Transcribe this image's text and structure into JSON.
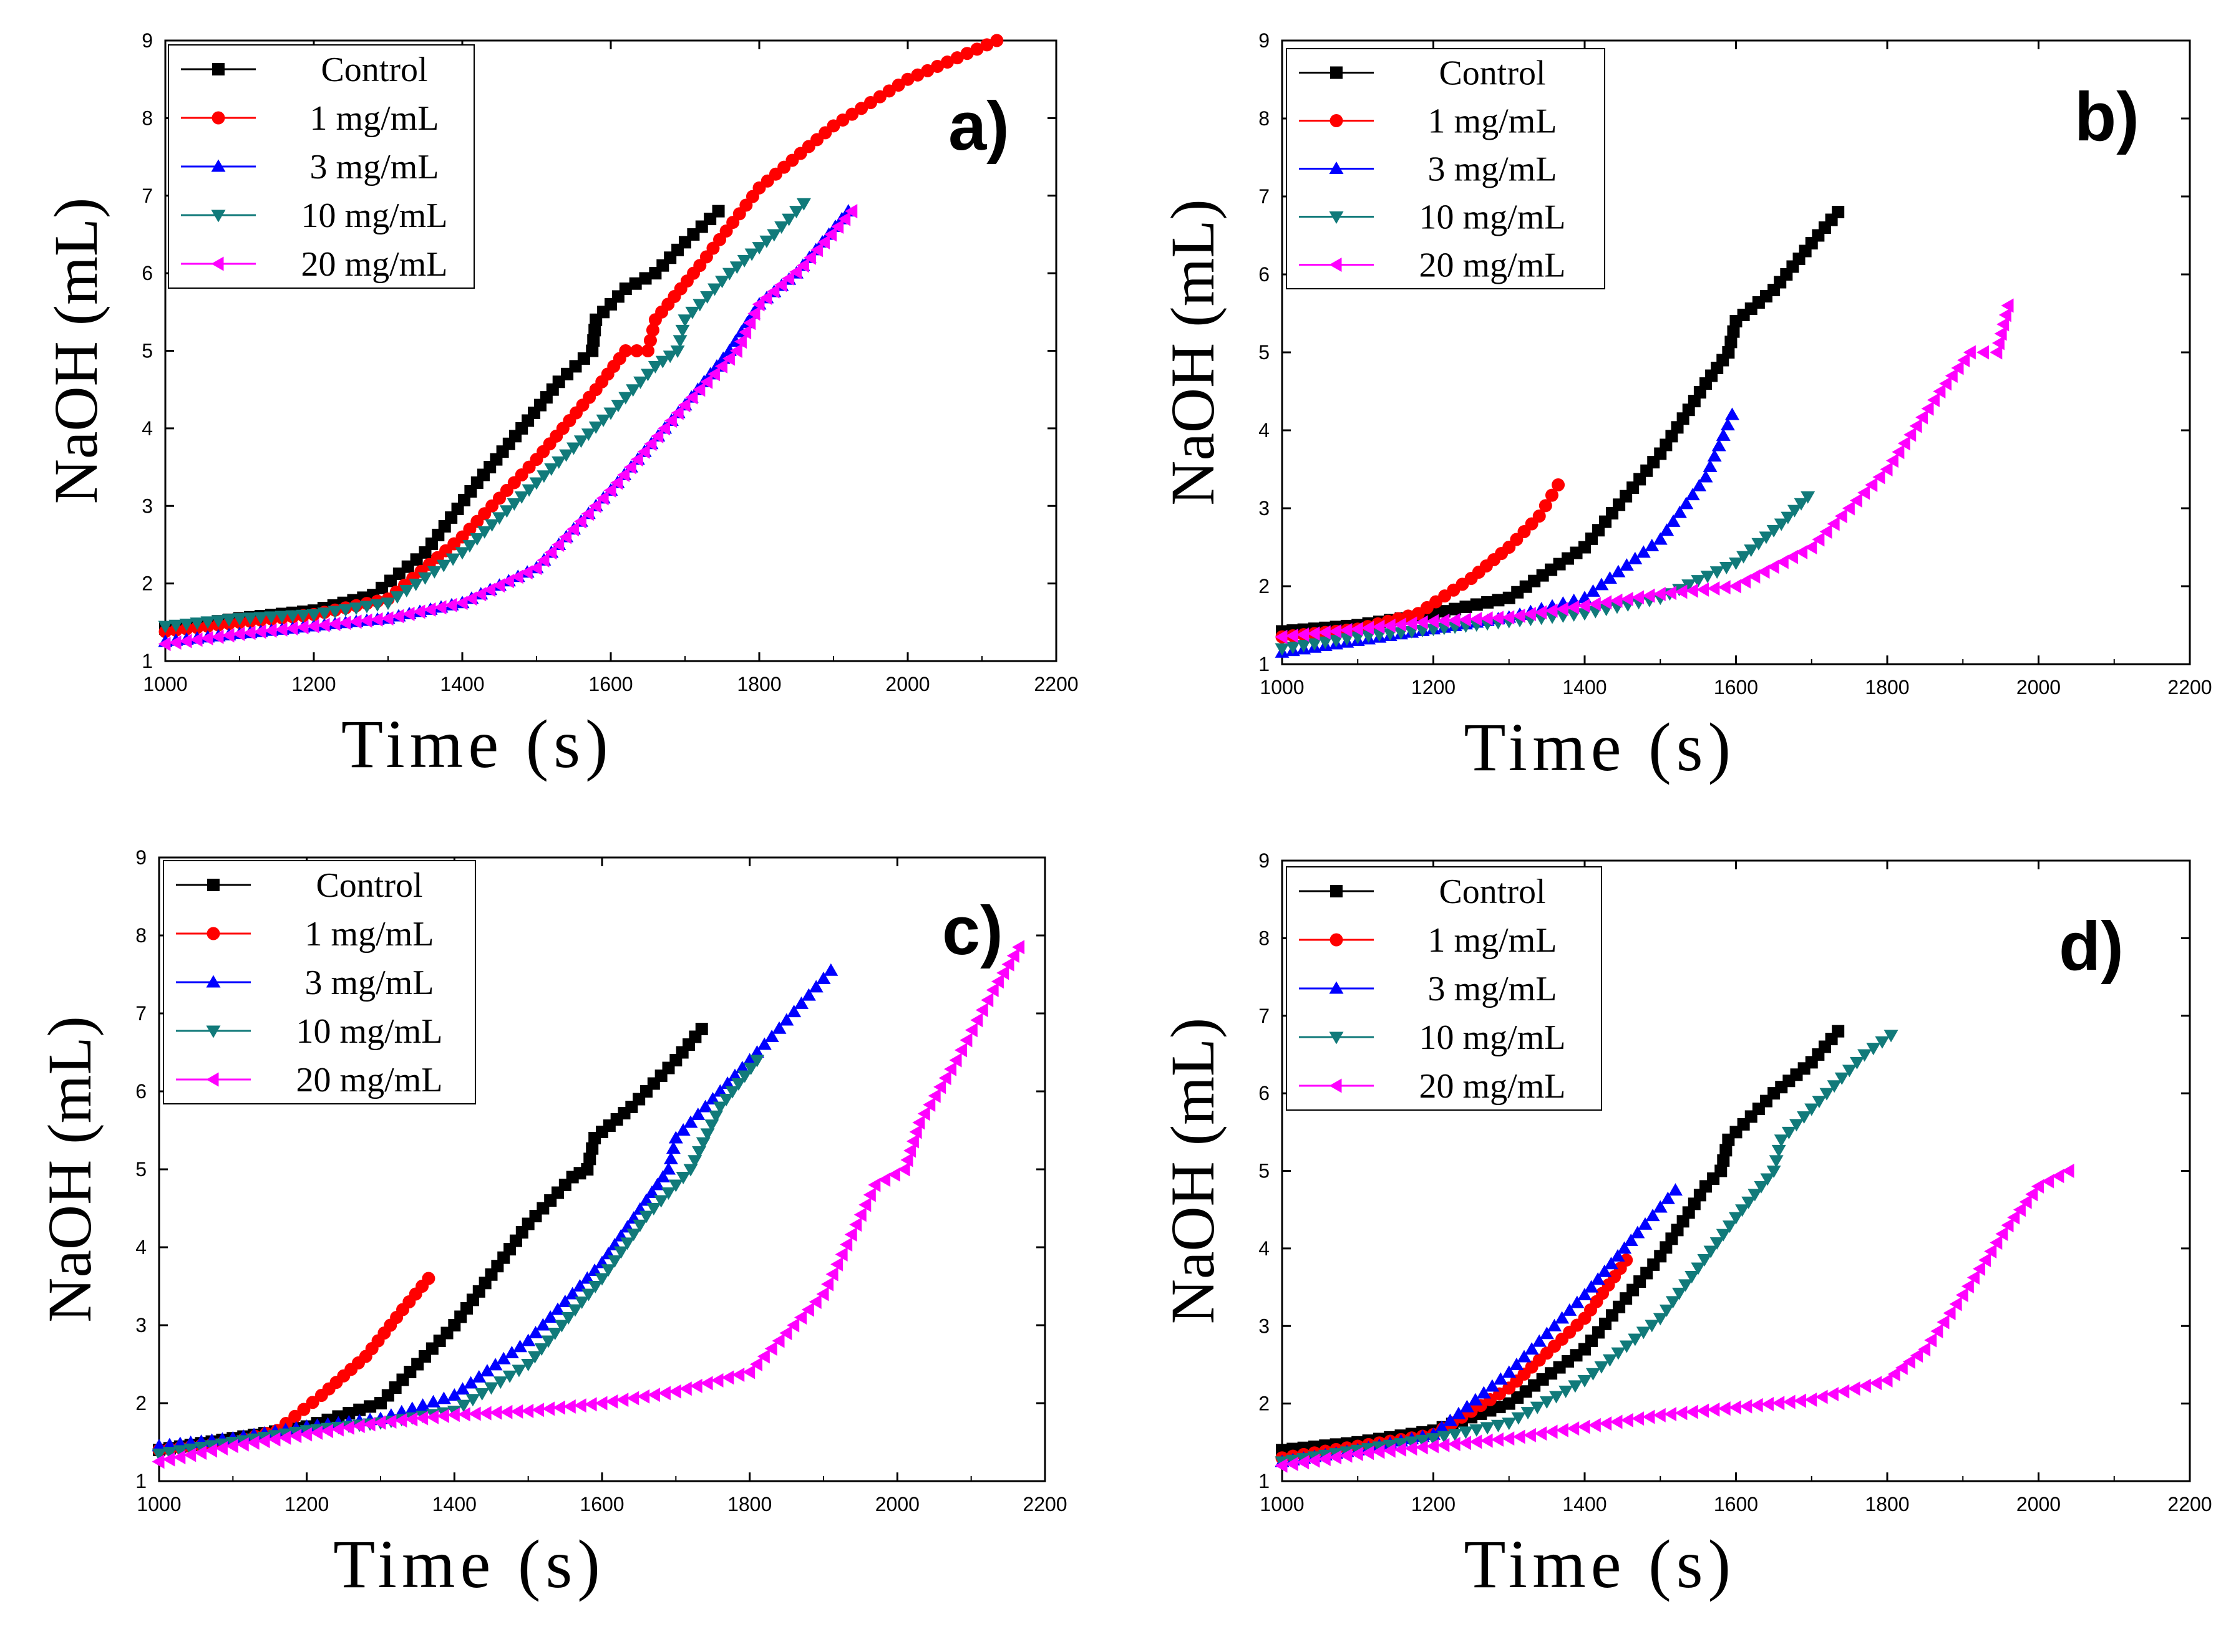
{
  "colors": {
    "Control": "#000000",
    "1 mg/mL": "#ff0000",
    "3 mg/mL": "#0000ff",
    "10 mg/mL": "#117a7a",
    "20 mg/mL": "#ff00ff"
  },
  "chart_data": [
    {
      "type": "scatter",
      "panel_label": "a)",
      "xlabel": "Time (s)",
      "ylabel": "NaOH (mL)",
      "xlim": [
        1000,
        2200
      ],
      "ylim": [
        1,
        9
      ],
      "xticks": [
        "1000",
        "1200",
        "1400",
        "1600",
        "1800",
        "2000",
        "2200"
      ],
      "yticks": [
        "1",
        "2",
        "3",
        "4",
        "5",
        "6",
        "7",
        "8",
        "9"
      ],
      "legend_position": "top-left",
      "series": [
        {
          "name": "Control",
          "marker": "square",
          "points": [
            [
              1000,
              1.42
            ],
            [
              1100,
              1.55
            ],
            [
              1200,
              1.65
            ],
            [
              1280,
              1.85
            ],
            [
              1350,
              2.4
            ],
            [
              1420,
              3.3
            ],
            [
              1480,
              4.0
            ],
            [
              1530,
              4.6
            ],
            [
              1575,
              5.0
            ],
            [
              1580,
              5.4
            ],
            [
              1620,
              5.8
            ],
            [
              1660,
              6.0
            ],
            [
              1700,
              6.4
            ],
            [
              1745,
              6.8
            ]
          ]
        },
        {
          "name": "1 mg/mL",
          "marker": "circle",
          "points": [
            [
              1000,
              1.38
            ],
            [
              1100,
              1.5
            ],
            [
              1200,
              1.6
            ],
            [
              1300,
              1.8
            ],
            [
              1400,
              2.6
            ],
            [
              1500,
              3.6
            ],
            [
              1580,
              4.5
            ],
            [
              1620,
              5.0
            ],
            [
              1650,
              5.0
            ],
            [
              1660,
              5.4
            ],
            [
              1720,
              6.1
            ],
            [
              1800,
              7.1
            ],
            [
              1900,
              7.9
            ],
            [
              2000,
              8.5
            ],
            [
              2120,
              9.0
            ]
          ]
        },
        {
          "name": "3 mg/mL",
          "marker": "triangle-up",
          "points": [
            [
              1000,
              1.25
            ],
            [
              1100,
              1.35
            ],
            [
              1200,
              1.45
            ],
            [
              1300,
              1.55
            ],
            [
              1400,
              1.75
            ],
            [
              1500,
              2.2
            ],
            [
              1600,
              3.2
            ],
            [
              1700,
              4.3
            ],
            [
              1760,
              5.0
            ],
            [
              1800,
              5.6
            ],
            [
              1850,
              6.0
            ],
            [
              1920,
              6.8
            ]
          ]
        },
        {
          "name": "10 mg/mL",
          "marker": "triangle-down",
          "points": [
            [
              1000,
              1.45
            ],
            [
              1100,
              1.55
            ],
            [
              1200,
              1.6
            ],
            [
              1300,
              1.75
            ],
            [
              1400,
              2.4
            ],
            [
              1500,
              3.3
            ],
            [
              1600,
              4.2
            ],
            [
              1660,
              4.8
            ],
            [
              1690,
              5.0
            ],
            [
              1700,
              5.4
            ],
            [
              1760,
              6.0
            ],
            [
              1820,
              6.5
            ],
            [
              1860,
              6.9
            ]
          ]
        },
        {
          "name": "20 mg/mL",
          "marker": "triangle-left",
          "points": [
            [
              1000,
              1.22
            ],
            [
              1100,
              1.35
            ],
            [
              1200,
              1.45
            ],
            [
              1300,
              1.55
            ],
            [
              1400,
              1.75
            ],
            [
              1500,
              2.2
            ],
            [
              1600,
              3.2
            ],
            [
              1700,
              4.3
            ],
            [
              1770,
              5.0
            ],
            [
              1800,
              5.6
            ],
            [
              1860,
              6.1
            ],
            [
              1925,
              6.8
            ]
          ]
        }
      ]
    },
    {
      "type": "scatter",
      "panel_label": "b)",
      "xlabel": "Time (s)",
      "ylabel": "NaOH (mL)",
      "xlim": [
        1000,
        2200
      ],
      "ylim": [
        1,
        9
      ],
      "xticks": [
        "1000",
        "1200",
        "1400",
        "1600",
        "1800",
        "2000",
        "2200"
      ],
      "yticks": [
        "1",
        "2",
        "3",
        "4",
        "5",
        "6",
        "7",
        "8",
        "9"
      ],
      "legend_position": "top-left",
      "series": [
        {
          "name": "Control",
          "marker": "square",
          "points": [
            [
              1000,
              1.42
            ],
            [
              1100,
              1.5
            ],
            [
              1200,
              1.65
            ],
            [
              1300,
              1.85
            ],
            [
              1400,
              2.5
            ],
            [
              1500,
              3.7
            ],
            [
              1560,
              4.6
            ],
            [
              1590,
              5.0
            ],
            [
              1600,
              5.4
            ],
            [
              1650,
              5.8
            ],
            [
              1700,
              6.4
            ],
            [
              1735,
              6.8
            ]
          ]
        },
        {
          "name": "1 mg/mL",
          "marker": "circle",
          "points": [
            [
              1000,
              1.35
            ],
            [
              1100,
              1.45
            ],
            [
              1180,
              1.65
            ],
            [
              1250,
              2.1
            ],
            [
              1300,
              2.5
            ],
            [
              1340,
              2.9
            ],
            [
              1365,
              3.3
            ]
          ]
        },
        {
          "name": "3 mg/mL",
          "marker": "triangle-up",
          "points": [
            [
              1000,
              1.15
            ],
            [
              1100,
              1.3
            ],
            [
              1200,
              1.45
            ],
            [
              1300,
              1.6
            ],
            [
              1400,
              1.85
            ],
            [
              1500,
              2.6
            ],
            [
              1560,
              3.4
            ],
            [
              1595,
              4.2
            ]
          ]
        },
        {
          "name": "10 mg/mL",
          "marker": "triangle-down",
          "points": [
            [
              1000,
              1.2
            ],
            [
              1100,
              1.35
            ],
            [
              1200,
              1.45
            ],
            [
              1300,
              1.55
            ],
            [
              1400,
              1.65
            ],
            [
              1500,
              1.85
            ],
            [
              1600,
              2.3
            ],
            [
              1660,
              2.8
            ],
            [
              1695,
              3.15
            ]
          ]
        },
        {
          "name": "20 mg/mL",
          "marker": "triangle-left",
          "points": [
            [
              1000,
              1.35
            ],
            [
              1100,
              1.45
            ],
            [
              1200,
              1.55
            ],
            [
              1300,
              1.6
            ],
            [
              1400,
              1.75
            ],
            [
              1500,
              1.9
            ],
            [
              1600,
              2.0
            ],
            [
              1700,
              2.5
            ],
            [
              1800,
              3.5
            ],
            [
              1870,
              4.5
            ],
            [
              1910,
              5.0
            ],
            [
              1945,
              5.0
            ],
            [
              1960,
              5.6
            ]
          ]
        }
      ]
    },
    {
      "type": "scatter",
      "panel_label": "c)",
      "xlabel": "Time (s)",
      "ylabel": "NaOH (mL)",
      "xlim": [
        1000,
        2200
      ],
      "ylim": [
        1,
        9
      ],
      "xticks": [
        "1000",
        "1200",
        "1400",
        "1600",
        "1800",
        "2000",
        "2200"
      ],
      "yticks": [
        "1",
        "2",
        "3",
        "4",
        "5",
        "6",
        "7",
        "8",
        "9"
      ],
      "legend_position": "top-left",
      "series": [
        {
          "name": "Control",
          "marker": "square",
          "points": [
            [
              1000,
              1.4
            ],
            [
              1100,
              1.55
            ],
            [
              1200,
              1.7
            ],
            [
              1300,
              2.0
            ],
            [
              1400,
              3.0
            ],
            [
              1500,
              4.3
            ],
            [
              1560,
              4.9
            ],
            [
              1580,
              5.0
            ],
            [
              1590,
              5.4
            ],
            [
              1640,
              5.8
            ],
            [
              1700,
              6.4
            ],
            [
              1735,
              6.8
            ]
          ]
        },
        {
          "name": "1 mg/mL",
          "marker": "circle",
          "points": [
            [
              1000,
              1.4
            ],
            [
              1100,
              1.5
            ],
            [
              1160,
              1.65
            ],
            [
              1220,
              2.1
            ],
            [
              1280,
              2.6
            ],
            [
              1330,
              3.2
            ],
            [
              1365,
              3.6
            ]
          ]
        },
        {
          "name": "3 mg/mL",
          "marker": "triangle-up",
          "points": [
            [
              1000,
              1.45
            ],
            [
              1100,
              1.55
            ],
            [
              1200,
              1.7
            ],
            [
              1300,
              1.8
            ],
            [
              1400,
              2.1
            ],
            [
              1500,
              2.8
            ],
            [
              1600,
              3.8
            ],
            [
              1660,
              4.6
            ],
            [
              1690,
              5.0
            ],
            [
              1700,
              5.4
            ],
            [
              1760,
              6.0
            ],
            [
              1830,
              6.7
            ],
            [
              1910,
              7.55
            ]
          ]
        },
        {
          "name": "10 mg/mL",
          "marker": "triangle-down",
          "points": [
            [
              1000,
              1.35
            ],
            [
              1100,
              1.5
            ],
            [
              1200,
              1.65
            ],
            [
              1300,
              1.75
            ],
            [
              1400,
              1.9
            ],
            [
              1500,
              2.5
            ],
            [
              1600,
              3.6
            ],
            [
              1660,
              4.4
            ],
            [
              1720,
              5.0
            ],
            [
              1760,
              5.8
            ],
            [
              1810,
              6.4
            ]
          ]
        },
        {
          "name": "20 mg/mL",
          "marker": "triangle-left",
          "points": [
            [
              1000,
              1.25
            ],
            [
              1100,
              1.45
            ],
            [
              1200,
              1.6
            ],
            [
              1300,
              1.75
            ],
            [
              1400,
              1.85
            ],
            [
              1500,
              1.9
            ],
            [
              1600,
              2.0
            ],
            [
              1700,
              2.15
            ],
            [
              1800,
              2.4
            ],
            [
              1900,
              3.4
            ],
            [
              1970,
              4.8
            ],
            [
              2010,
              5.0
            ],
            [
              2030,
              5.6
            ],
            [
              2080,
              6.4
            ],
            [
              2130,
              7.3
            ],
            [
              2165,
              7.85
            ]
          ]
        }
      ]
    },
    {
      "type": "scatter",
      "panel_label": "d)",
      "xlabel": "Time (s)",
      "ylabel": "NaOH (mL)",
      "xlim": [
        1000,
        2200
      ],
      "ylim": [
        1,
        9
      ],
      "xticks": [
        "1000",
        "1200",
        "1400",
        "1600",
        "1800",
        "2000",
        "2200"
      ],
      "yticks": [
        "1",
        "2",
        "3",
        "4",
        "5",
        "6",
        "7",
        "8",
        "9"
      ],
      "legend_position": "top-left",
      "series": [
        {
          "name": "Control",
          "marker": "square",
          "points": [
            [
              1000,
              1.4
            ],
            [
              1100,
              1.5
            ],
            [
              1200,
              1.65
            ],
            [
              1300,
              2.0
            ],
            [
              1400,
              2.7
            ],
            [
              1500,
              3.9
            ],
            [
              1560,
              4.8
            ],
            [
              1580,
              5.0
            ],
            [
              1590,
              5.4
            ],
            [
              1650,
              6.0
            ],
            [
              1700,
              6.4
            ],
            [
              1735,
              6.8
            ]
          ]
        },
        {
          "name": "1 mg/mL",
          "marker": "circle",
          "points": [
            [
              1000,
              1.3
            ],
            [
              1100,
              1.45
            ],
            [
              1200,
              1.6
            ],
            [
              1300,
              2.2
            ],
            [
              1400,
              3.1
            ],
            [
              1455,
              3.85
            ]
          ]
        },
        {
          "name": "3 mg/mL",
          "marker": "triangle-up",
          "points": [
            [
              1000,
              1.25
            ],
            [
              1100,
              1.4
            ],
            [
              1200,
              1.6
            ],
            [
              1300,
              2.4
            ],
            [
              1400,
              3.4
            ],
            [
              1470,
              4.2
            ],
            [
              1520,
              4.75
            ]
          ]
        },
        {
          "name": "10 mg/mL",
          "marker": "triangle-down",
          "points": [
            [
              1000,
              1.25
            ],
            [
              1100,
              1.4
            ],
            [
              1200,
              1.55
            ],
            [
              1300,
              1.75
            ],
            [
              1400,
              2.3
            ],
            [
              1500,
              3.1
            ],
            [
              1600,
              4.4
            ],
            [
              1650,
              5.0
            ],
            [
              1660,
              5.4
            ],
            [
              1720,
              6.0
            ],
            [
              1770,
              6.5
            ],
            [
              1805,
              6.75
            ]
          ]
        },
        {
          "name": "20 mg/mL",
          "marker": "triangle-left",
          "points": [
            [
              1000,
              1.2
            ],
            [
              1100,
              1.35
            ],
            [
              1200,
              1.45
            ],
            [
              1300,
              1.55
            ],
            [
              1400,
              1.7
            ],
            [
              1500,
              1.85
            ],
            [
              1600,
              1.95
            ],
            [
              1700,
              2.05
            ],
            [
              1800,
              2.3
            ],
            [
              1850,
              2.7
            ],
            [
              1900,
              3.4
            ],
            [
              1960,
              4.3
            ],
            [
              2000,
              4.8
            ],
            [
              2040,
              5.0
            ]
          ]
        }
      ]
    }
  ]
}
